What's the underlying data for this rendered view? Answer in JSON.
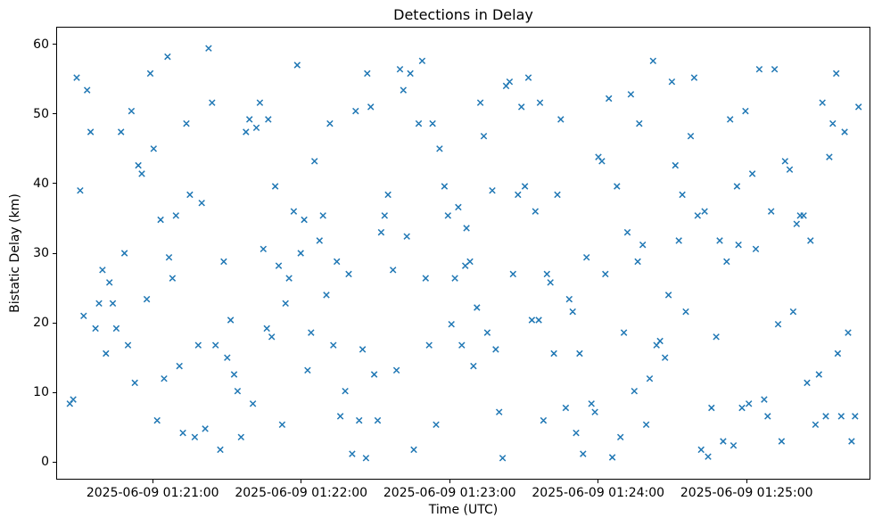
{
  "chart_data": {
    "type": "scatter",
    "title": "Detections in Delay",
    "xlabel": "Time (UTC)",
    "ylabel": "Bistatic Delay (km)",
    "marker": "x",
    "marker_color": "#1f77b4",
    "grid": false,
    "x_unit": "seconds after 2025-06-09 01:20:00 UTC",
    "xlim": [
      21,
      350
    ],
    "ylim": [
      -2.5,
      62.5
    ],
    "y_ticks": [
      0,
      10,
      20,
      30,
      40,
      50,
      60
    ],
    "x_ticks": [
      {
        "t": 60,
        "label": "2025-06-09 01:21:00"
      },
      {
        "t": 120,
        "label": "2025-06-09 01:22:00"
      },
      {
        "t": 180,
        "label": "2025-06-09 01:23:00"
      },
      {
        "t": 240,
        "label": "2025-06-09 01:24:00"
      },
      {
        "t": 300,
        "label": "2025-06-09 01:25:00"
      }
    ],
    "points": [
      [
        26.5,
        8.4
      ],
      [
        27.9,
        9.0
      ],
      [
        29.3,
        55.2
      ],
      [
        30.7,
        39.0
      ],
      [
        32.1,
        21.0
      ],
      [
        33.5,
        53.4
      ],
      [
        34.9,
        47.4
      ],
      [
        36.9,
        19.2
      ],
      [
        38.3,
        22.8
      ],
      [
        39.7,
        27.6
      ],
      [
        41.1,
        15.6
      ],
      [
        42.5,
        25.8
      ],
      [
        43.9,
        22.8
      ],
      [
        45.3,
        19.2
      ],
      [
        47.2,
        47.4
      ],
      [
        48.6,
        30.0
      ],
      [
        50.0,
        16.8
      ],
      [
        51.4,
        50.4
      ],
      [
        52.8,
        11.4
      ],
      [
        54.2,
        42.6
      ],
      [
        55.6,
        41.4
      ],
      [
        57.6,
        23.4
      ],
      [
        59.0,
        55.8
      ],
      [
        60.4,
        45.0
      ],
      [
        61.8,
        6.0
      ],
      [
        63.2,
        34.8
      ],
      [
        64.6,
        12.0
      ],
      [
        66.0,
        58.2
      ],
      [
        66.6,
        29.4
      ],
      [
        68.0,
        26.4
      ],
      [
        69.4,
        35.4
      ],
      [
        70.8,
        13.8
      ],
      [
        72.2,
        4.2
      ],
      [
        73.6,
        48.6
      ],
      [
        75.0,
        38.4
      ],
      [
        77.0,
        3.6
      ],
      [
        78.4,
        16.8
      ],
      [
        79.8,
        37.2
      ],
      [
        81.2,
        4.8
      ],
      [
        82.6,
        59.4
      ],
      [
        84.0,
        51.6
      ],
      [
        85.4,
        16.8
      ],
      [
        87.3,
        1.8
      ],
      [
        88.7,
        28.8
      ],
      [
        90.1,
        15.0
      ],
      [
        91.5,
        20.4
      ],
      [
        92.9,
        12.6
      ],
      [
        94.3,
        10.2
      ],
      [
        95.7,
        3.6
      ],
      [
        97.7,
        47.4
      ],
      [
        99.1,
        49.2
      ],
      [
        100.5,
        8.4
      ],
      [
        101.9,
        48.0
      ],
      [
        103.3,
        51.6
      ],
      [
        104.7,
        30.6
      ],
      [
        106.1,
        19.2
      ],
      [
        106.7,
        49.2
      ],
      [
        108.1,
        18.0
      ],
      [
        109.5,
        39.6
      ],
      [
        110.9,
        28.2
      ],
      [
        112.3,
        5.4
      ],
      [
        113.7,
        22.8
      ],
      [
        115.1,
        26.4
      ],
      [
        117.0,
        36.0
      ],
      [
        118.4,
        57.0
      ],
      [
        119.8,
        30.0
      ],
      [
        121.2,
        34.8
      ],
      [
        122.6,
        13.2
      ],
      [
        124.0,
        18.6
      ],
      [
        125.4,
        43.2
      ],
      [
        127.4,
        31.8
      ],
      [
        128.8,
        35.4
      ],
      [
        130.2,
        24.0
      ],
      [
        131.6,
        48.6
      ],
      [
        133.0,
        16.8
      ],
      [
        134.4,
        28.8
      ],
      [
        135.8,
        6.6
      ],
      [
        137.8,
        10.2
      ],
      [
        139.2,
        27.0
      ],
      [
        140.6,
        1.2
      ],
      [
        142.0,
        50.4
      ],
      [
        143.4,
        6.0
      ],
      [
        144.8,
        16.2
      ],
      [
        146.2,
        0.6
      ],
      [
        146.7,
        55.8
      ],
      [
        148.1,
        51.0
      ],
      [
        149.5,
        12.6
      ],
      [
        150.9,
        6.0
      ],
      [
        152.3,
        33.0
      ],
      [
        153.7,
        35.4
      ],
      [
        155.1,
        38.4
      ],
      [
        157.1,
        27.6
      ],
      [
        158.5,
        13.2
      ],
      [
        159.9,
        56.4
      ],
      [
        161.3,
        53.4
      ],
      [
        162.7,
        32.4
      ],
      [
        164.1,
        55.8
      ],
      [
        165.5,
        1.8
      ],
      [
        167.5,
        48.6
      ],
      [
        168.9,
        57.6
      ],
      [
        170.3,
        26.4
      ],
      [
        171.7,
        16.8
      ],
      [
        173.1,
        48.6
      ],
      [
        174.5,
        5.4
      ],
      [
        175.9,
        45.0
      ],
      [
        177.9,
        39.6
      ],
      [
        179.3,
        35.4
      ],
      [
        180.7,
        19.8
      ],
      [
        182.1,
        26.4
      ],
      [
        183.5,
        36.6
      ],
      [
        184.9,
        16.8
      ],
      [
        186.3,
        28.2
      ],
      [
        186.8,
        33.6
      ],
      [
        188.2,
        28.8
      ],
      [
        189.6,
        13.8
      ],
      [
        191.0,
        22.2
      ],
      [
        192.4,
        51.6
      ],
      [
        193.8,
        46.8
      ],
      [
        195.2,
        18.6
      ],
      [
        197.2,
        39.0
      ],
      [
        198.6,
        16.2
      ],
      [
        200.0,
        7.2
      ],
      [
        201.4,
        0.6
      ],
      [
        202.8,
        54.0
      ],
      [
        204.2,
        54.6
      ],
      [
        205.6,
        27.0
      ],
      [
        207.6,
        38.4
      ],
      [
        209.0,
        51.0
      ],
      [
        210.4,
        39.6
      ],
      [
        211.8,
        55.2
      ],
      [
        213.2,
        20.4
      ],
      [
        214.6,
        36.0
      ],
      [
        216.0,
        20.4
      ],
      [
        216.5,
        51.6
      ],
      [
        217.9,
        6.0
      ],
      [
        219.3,
        27.0
      ],
      [
        220.7,
        25.8
      ],
      [
        222.1,
        15.6
      ],
      [
        223.5,
        38.4
      ],
      [
        224.9,
        49.2
      ],
      [
        226.9,
        7.8
      ],
      [
        228.3,
        23.4
      ],
      [
        229.7,
        21.6
      ],
      [
        231.1,
        4.2
      ],
      [
        232.5,
        15.6
      ],
      [
        233.9,
        1.2
      ],
      [
        235.3,
        29.4
      ],
      [
        237.3,
        8.4
      ],
      [
        238.7,
        7.2
      ],
      [
        240.1,
        43.8
      ],
      [
        241.5,
        43.2
      ],
      [
        242.9,
        27.0
      ],
      [
        244.3,
        52.2
      ],
      [
        245.7,
        0.7
      ],
      [
        247.6,
        39.6
      ],
      [
        249.0,
        3.6
      ],
      [
        250.4,
        18.6
      ],
      [
        251.8,
        33.0
      ],
      [
        253.2,
        52.8
      ],
      [
        254.6,
        10.2
      ],
      [
        256.0,
        28.8
      ],
      [
        256.6,
        48.6
      ],
      [
        258.0,
        31.2
      ],
      [
        259.4,
        5.4
      ],
      [
        260.8,
        12.0
      ],
      [
        262.2,
        57.6
      ],
      [
        263.6,
        16.8
      ],
      [
        265.0,
        17.4
      ],
      [
        267.0,
        15.0
      ],
      [
        268.4,
        24.0
      ],
      [
        269.8,
        54.6
      ],
      [
        271.2,
        42.6
      ],
      [
        272.6,
        31.8
      ],
      [
        274.0,
        38.4
      ],
      [
        275.4,
        21.6
      ],
      [
        277.4,
        46.8
      ],
      [
        278.8,
        55.2
      ],
      [
        280.2,
        35.4
      ],
      [
        281.6,
        1.8
      ],
      [
        283.0,
        36.0
      ],
      [
        284.4,
        0.8
      ],
      [
        285.8,
        7.8
      ],
      [
        287.7,
        18.0
      ],
      [
        289.1,
        31.8
      ],
      [
        290.5,
        3.0
      ],
      [
        291.9,
        28.8
      ],
      [
        293.3,
        49.2
      ],
      [
        294.7,
        2.4
      ],
      [
        296.1,
        39.6
      ],
      [
        296.7,
        31.2
      ],
      [
        298.1,
        7.8
      ],
      [
        299.5,
        50.4
      ],
      [
        300.9,
        8.4
      ],
      [
        302.3,
        41.4
      ],
      [
        303.7,
        30.6
      ],
      [
        305.1,
        56.4
      ],
      [
        307.1,
        9.0
      ],
      [
        308.5,
        6.6
      ],
      [
        309.9,
        36.0
      ],
      [
        311.3,
        56.4
      ],
      [
        312.7,
        19.8
      ],
      [
        314.1,
        3.0
      ],
      [
        315.5,
        43.2
      ],
      [
        317.4,
        42.0
      ],
      [
        318.8,
        21.6
      ],
      [
        320.2,
        34.2
      ],
      [
        321.6,
        35.4
      ],
      [
        323.0,
        35.4
      ],
      [
        324.4,
        11.4
      ],
      [
        325.8,
        31.8
      ],
      [
        327.8,
        5.4
      ],
      [
        329.2,
        12.6
      ],
      [
        330.6,
        51.6
      ],
      [
        332.0,
        6.6
      ],
      [
        333.4,
        43.8
      ],
      [
        334.8,
        48.6
      ],
      [
        336.2,
        55.8
      ],
      [
        336.8,
        15.6
      ],
      [
        338.2,
        6.6
      ],
      [
        339.6,
        47.4
      ],
      [
        341.0,
        18.6
      ],
      [
        342.4,
        3.0
      ],
      [
        343.8,
        6.6
      ],
      [
        345.2,
        51.0
      ]
    ]
  }
}
